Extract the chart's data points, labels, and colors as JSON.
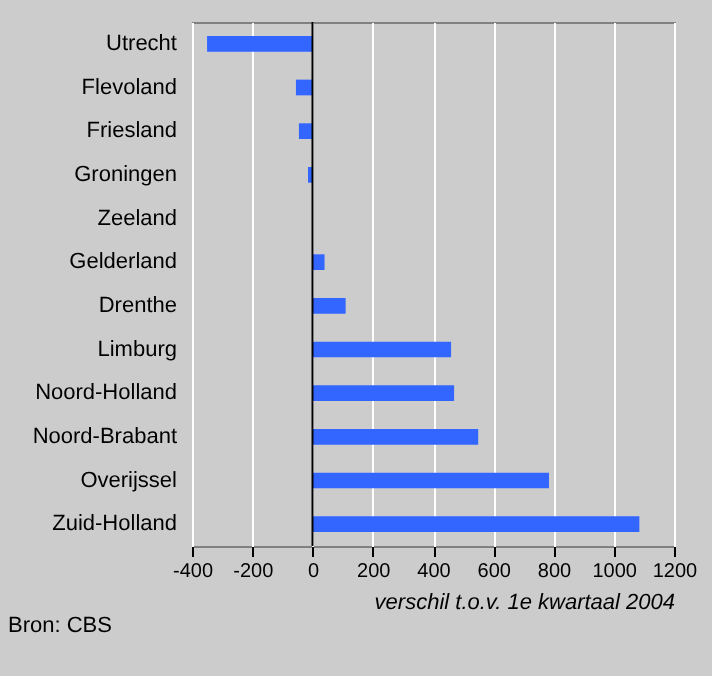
{
  "chart_data": {
    "type": "bar",
    "orientation": "horizontal",
    "categories": [
      "Utrecht",
      "Flevoland",
      "Friesland",
      "Groningen",
      "Zeeland",
      "Gelderland",
      "Drenthe",
      "Limburg",
      "Noord-Holland",
      "Noord-Brabant",
      "Overijssel",
      "Zuid-Holland"
    ],
    "values": [
      -350,
      -55,
      -45,
      -15,
      0,
      40,
      110,
      460,
      470,
      550,
      785,
      1085
    ],
    "color": "#3366ff",
    "xlim": [
      -400,
      1200
    ],
    "xticks": [
      -400,
      -200,
      0,
      200,
      400,
      600,
      800,
      1000,
      1200
    ],
    "xlabel": "verschil t.o.v. 1e kwartaal 2004",
    "grid": "x",
    "annotations": [
      "Bron: CBS"
    ]
  }
}
